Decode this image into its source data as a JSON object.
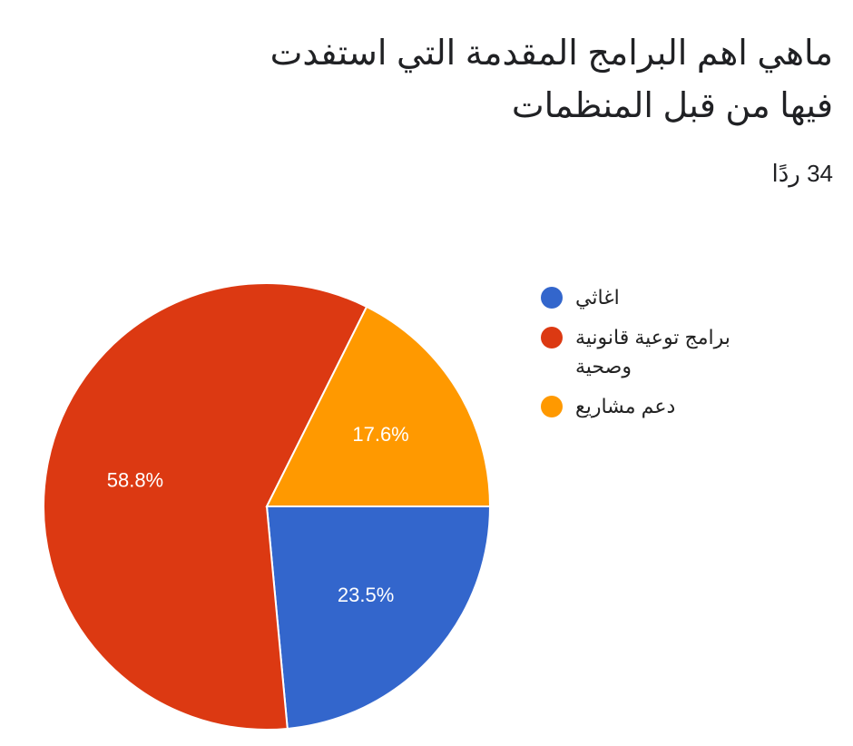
{
  "chart_data": {
    "type": "pie",
    "title": "ماهي اهم البرامج المقدمة التي استفدت فيها من قبل المنظمات",
    "subtitle": "34 ردًا",
    "categories": [
      "اغاثي",
      "برامج توعية قانونية وصحية",
      "دعم مشاريع"
    ],
    "values": [
      23.5,
      58.8,
      17.6
    ],
    "value_labels": [
      "23.5%",
      "58.8%",
      "17.6%"
    ],
    "colors": [
      "#3366cc",
      "#dc3912",
      "#ff9900"
    ]
  }
}
